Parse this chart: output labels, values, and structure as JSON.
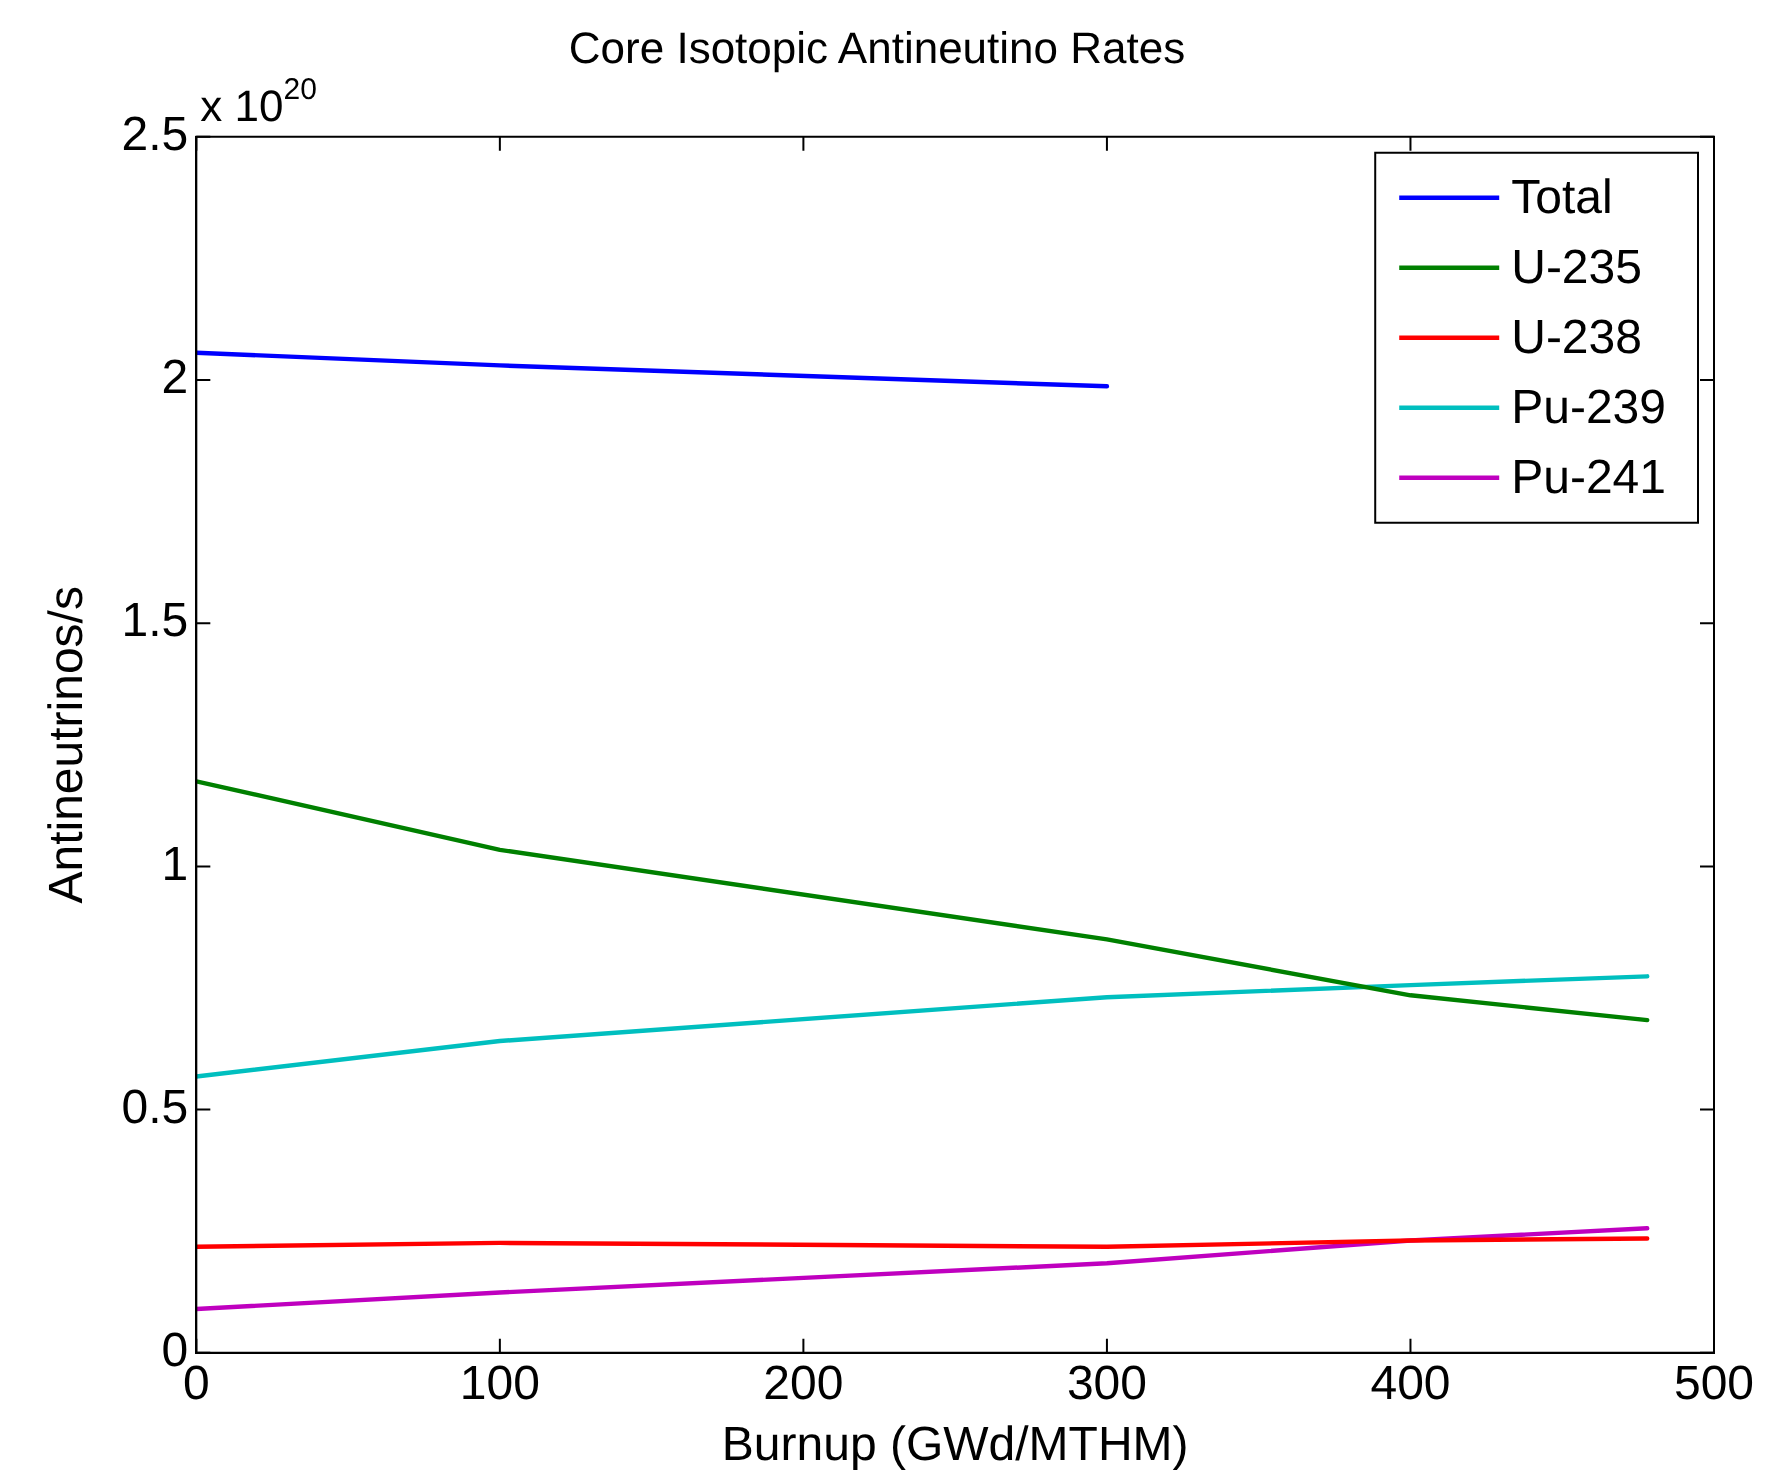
{
  "chart_data": {
    "type": "line",
    "title": "Core Isotopic Antineutino Rates",
    "xlabel": "Burnup (GWd/MTHM)",
    "ylabel": "Antineutrinos/s",
    "annotations": [
      "x 10$^{20}$"
    ],
    "x": [
      0,
      100,
      300,
      400,
      478
    ],
    "series": [
      {
        "name": "Total",
        "color": "#0000ff",
        "values": [
          2.056,
          2.03,
          1.987,
          null,
          null
        ]
      },
      {
        "name": "U-235",
        "color": "#008000",
        "values": [
          1.175,
          1.034,
          0.85,
          0.735,
          0.684
        ]
      },
      {
        "name": "U-238",
        "color": "#ff0000",
        "values": [
          0.218,
          0.226,
          0.218,
          0.231,
          0.235
        ]
      },
      {
        "name": "Pu-239",
        "color": "#00bfbf",
        "values": [
          0.568,
          0.641,
          0.731,
          0.756,
          0.774
        ]
      },
      {
        "name": "Pu-241",
        "color": "#bf00bf",
        "values": [
          0.09,
          0.124,
          0.184,
          0.231,
          0.256
        ]
      }
    ],
    "xlim": [
      0,
      500
    ],
    "xticks": [
      0,
      100,
      200,
      300,
      400,
      500
    ],
    "ylim": [
      0,
      2.5
    ],
    "yticks": [
      0,
      0.5,
      1,
      1.5,
      2,
      2.5
    ],
    "grid": false,
    "legend": "top right",
    "marker": "none",
    "line_style": "solid"
  }
}
